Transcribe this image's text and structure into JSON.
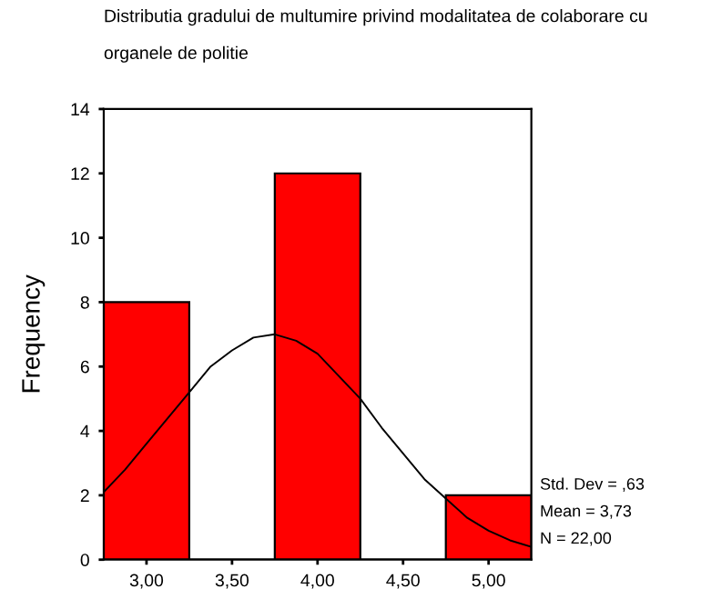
{
  "chart_data": {
    "type": "histogram",
    "title": "Distributia gradului de multumire privind modalitatea de colaborare cu\norganele de politie",
    "ylabel": "Frequency",
    "bins": [
      2.75,
      3.25,
      3.75,
      4.25,
      4.75,
      5.25
    ],
    "values": [
      8,
      0,
      12,
      0,
      2
    ],
    "color": "#ff0000",
    "series": [
      {
        "type": "line",
        "color": "#000000",
        "x": [
          2.75,
          2.875,
          3.0,
          3.125,
          3.25,
          3.375,
          3.5,
          3.625,
          3.75,
          3.875,
          4.0,
          4.125,
          4.25,
          4.375,
          4.5,
          4.625,
          4.75,
          4.875,
          5.0,
          5.125,
          5.25
        ],
        "values": [
          2.1,
          2.8,
          3.6,
          4.4,
          5.2,
          6.0,
          6.5,
          6.9,
          7.0,
          6.8,
          6.4,
          5.7,
          5.0,
          4.1,
          3.3,
          2.5,
          1.9,
          1.3,
          0.9,
          0.6,
          0.4
        ]
      }
    ],
    "xlim": [
      2.75,
      5.25
    ],
    "xticks": [
      {
        "value": 3.0,
        "label": "3,00"
      },
      {
        "value": 3.5,
        "label": "3,50"
      },
      {
        "value": 4.0,
        "label": "4,00"
      },
      {
        "value": 4.5,
        "label": "4,50"
      },
      {
        "value": 5.0,
        "label": "5,00"
      }
    ],
    "ylim": [
      0,
      14
    ],
    "yticks": [
      0,
      2,
      4,
      6,
      8,
      10,
      12,
      14
    ],
    "grid": false,
    "legend": false,
    "annotations": [
      "Std. Dev = ,63",
      "Mean = 3,73",
      "N = 22,00"
    ]
  }
}
